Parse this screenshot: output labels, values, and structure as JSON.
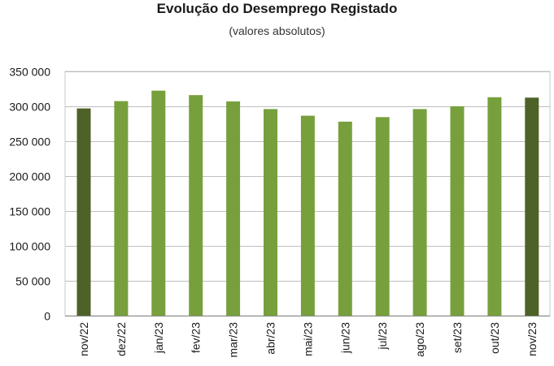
{
  "chart_data": {
    "type": "bar",
    "title": "Evolução do Desemprego Registado",
    "subtitle": "(valores absolutos)",
    "categories": [
      "nov/22",
      "dez/22",
      "jan/23",
      "fev/23",
      "mar/23",
      "abr/23",
      "mai/23",
      "jun/23",
      "jul/23",
      "ago/23",
      "set/23",
      "out/23",
      "nov/23"
    ],
    "values": [
      297000,
      307500,
      322500,
      316000,
      307000,
      296000,
      286500,
      278000,
      284500,
      296000,
      300000,
      313000,
      312500
    ],
    "ylim": [
      0,
      350000
    ],
    "yticks": [
      0,
      50000,
      100000,
      150000,
      200000,
      250000,
      300000,
      350000
    ],
    "ytick_labels": [
      "0",
      "50 000",
      "100 000",
      "150 000",
      "200 000",
      "250 000",
      "300 000",
      "350 000"
    ],
    "grid": true,
    "colors": {
      "bar": "#77a03d",
      "bar_highlight": "#4e6228",
      "grid": "#bfbfbf",
      "plot_border": "#c8c8c8"
    },
    "highlight_categories": [
      "nov/22",
      "nov/23"
    ]
  }
}
